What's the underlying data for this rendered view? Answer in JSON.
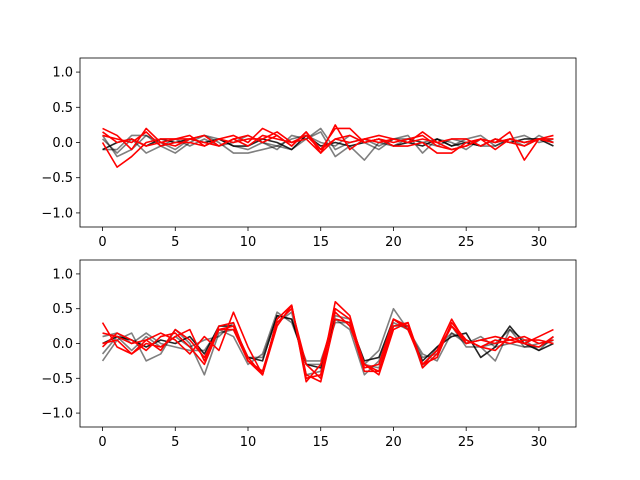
{
  "chart_data": [
    {
      "type": "line",
      "title": "",
      "xlabel": "",
      "ylabel": "",
      "xlim": [
        -1.55,
        32.55
      ],
      "ylim": [
        -1.2,
        1.2
      ],
      "xticks": [
        0,
        5,
        10,
        15,
        20,
        25,
        30
      ],
      "yticks": [
        1.0,
        0.5,
        0.0,
        -0.5,
        -1.0
      ],
      "xtick_labels": [
        "0",
        "5",
        "10",
        "15",
        "20",
        "25",
        "30"
      ],
      "ytick_labels": [
        "1.0",
        "0.5",
        "0.0",
        "−0.5",
        "−1.0"
      ],
      "grid": false,
      "series": [
        {
          "color": "#000000",
          "opacity": 0.5,
          "values": [
            0.1,
            -0.2,
            -0.1,
            0.1,
            0.0,
            -0.1,
            0.05,
            0.1,
            0.05,
            -0.05,
            -0.1,
            0.0,
            -0.1,
            0.1,
            0.05,
            0.15,
            -0.2,
            -0.05,
            -0.25,
            0.0,
            -0.05,
            0.05,
            0.0,
            0.05,
            -0.05,
            0.05,
            0.1,
            -0.05,
            0.05,
            0.0,
            0.05,
            0.0
          ]
        },
        {
          "color": "#000000",
          "opacity": 0.5,
          "values": [
            -0.1,
            -0.1,
            0.1,
            0.1,
            -0.05,
            -0.15,
            0.0,
            0.1,
            0.0,
            -0.15,
            -0.15,
            -0.1,
            -0.05,
            -0.1,
            0.05,
            0.2,
            -0.1,
            0.0,
            0.05,
            -0.05,
            0.05,
            0.1,
            -0.15,
            0.05,
            0.0,
            -0.1,
            0.05,
            0.0,
            0.05,
            -0.05,
            0.1,
            0.0
          ]
        },
        {
          "color": "#000000",
          "opacity": 0.5,
          "values": [
            0.05,
            -0.15,
            0.05,
            -0.15,
            -0.05,
            0.05,
            -0.05,
            0.05,
            -0.05,
            0.0,
            0.1,
            0.0,
            -0.05,
            0.05,
            0.1,
            0.0,
            -0.05,
            0.1,
            0.0,
            -0.1,
            0.05,
            0.05,
            0.0,
            -0.05,
            0.05,
            0.0,
            -0.05,
            -0.05,
            0.05,
            0.1,
            0.0,
            0.05
          ]
        },
        {
          "color": "#000000",
          "opacity": 0.85,
          "values": [
            -0.1,
            0.0,
            0.05,
            -0.05,
            0.05,
            0.0,
            0.05,
            0.0,
            0.05,
            -0.05,
            -0.05,
            0.05,
            0.0,
            -0.1,
            0.1,
            -0.05,
            0.0,
            -0.05,
            0.0,
            0.05,
            -0.05,
            0.0,
            -0.05,
            0.05,
            -0.05,
            0.0,
            -0.05,
            0.05,
            0.0,
            0.05,
            0.05,
            -0.05
          ]
        },
        {
          "color": "#ff0000",
          "opacity": 1.0,
          "values": [
            0.2,
            0.1,
            -0.1,
            0.2,
            0.0,
            -0.05,
            0.05,
            0.1,
            -0.05,
            0.05,
            0.1,
            0.0,
            0.1,
            -0.05,
            0.15,
            -0.1,
            0.2,
            0.2,
            0.0,
            0.05,
            0.0,
            0.05,
            0.1,
            -0.05,
            -0.1,
            -0.05,
            0.05,
            0.0,
            0.05,
            0.0,
            0.05,
            0.0
          ]
        },
        {
          "color": "#ff0000",
          "opacity": 1.0,
          "values": [
            0.0,
            -0.35,
            -0.2,
            0.0,
            0.05,
            0.05,
            0.05,
            0.0,
            -0.05,
            0.05,
            -0.05,
            0.1,
            0.05,
            0.0,
            0.1,
            -0.1,
            0.05,
            0.1,
            0.0,
            0.05,
            -0.05,
            -0.05,
            0.0,
            -0.15,
            -0.15,
            0.0,
            0.05,
            -0.1,
            0.05,
            0.0,
            0.05,
            0.1
          ]
        },
        {
          "color": "#ff0000",
          "opacity": 1.0,
          "values": [
            0.15,
            0.0,
            0.05,
            -0.05,
            0.0,
            0.05,
            0.1,
            -0.05,
            0.05,
            0.1,
            0.0,
            0.2,
            0.1,
            -0.05,
            0.15,
            -0.15,
            0.25,
            -0.1,
            0.05,
            0.1,
            0.05,
            0.0,
            0.15,
            0.0,
            -0.1,
            -0.05,
            0.05,
            0.0,
            0.15,
            -0.25,
            0.05,
            0.05
          ]
        },
        {
          "color": "#ff0000",
          "opacity": 1.0,
          "values": [
            0.1,
            0.05,
            0.0,
            0.15,
            -0.05,
            0.0,
            0.0,
            -0.05,
            0.05,
            0.0,
            0.05,
            0.05,
            0.15,
            0.0,
            0.05,
            -0.15,
            0.05,
            0.0,
            0.05,
            0.0,
            0.05,
            0.0,
            0.05,
            0.0,
            0.05,
            0.05,
            -0.05,
            0.05,
            0.0,
            -0.05,
            0.05,
            0.0
          ]
        }
      ]
    },
    {
      "type": "line",
      "title": "",
      "xlabel": "",
      "ylabel": "",
      "xlim": [
        -1.55,
        32.55
      ],
      "ylim": [
        -1.2,
        1.2
      ],
      "xticks": [
        0,
        5,
        10,
        15,
        20,
        25,
        30
      ],
      "yticks": [
        1.0,
        0.5,
        0.0,
        -0.5,
        -1.0
      ],
      "xtick_labels": [
        "0",
        "5",
        "10",
        "15",
        "20",
        "25",
        "30"
      ],
      "ytick_labels": [
        "1.0",
        "0.5",
        "0.0",
        "−0.5",
        "−1.0"
      ],
      "grid": false,
      "series": [
        {
          "color": "#000000",
          "opacity": 0.5,
          "values": [
            -0.25,
            0.05,
            0.15,
            -0.25,
            -0.15,
            0.2,
            0.0,
            -0.45,
            0.15,
            0.2,
            -0.2,
            -0.2,
            0.4,
            0.35,
            -0.3,
            -0.3,
            0.3,
            0.3,
            -0.3,
            -0.1,
            0.5,
            0.2,
            -0.15,
            -0.25,
            0.15,
            0.0,
            0.1,
            -0.05,
            0.0,
            -0.05,
            -0.05,
            0.05
          ]
        },
        {
          "color": "#000000",
          "opacity": 0.5,
          "values": [
            0.1,
            0.15,
            0.0,
            0.15,
            0.0,
            -0.05,
            -0.1,
            -0.1,
            0.2,
            0.1,
            -0.3,
            -0.15,
            0.45,
            0.3,
            -0.25,
            -0.25,
            0.35,
            0.2,
            -0.45,
            -0.25,
            0.3,
            0.2,
            -0.2,
            -0.15,
            0.25,
            -0.05,
            -0.05,
            -0.25,
            0.2,
            0.05,
            -0.1,
            0.1
          ]
        },
        {
          "color": "#000000",
          "opacity": 0.5,
          "values": [
            -0.15,
            0.1,
            -0.1,
            0.1,
            -0.05,
            0.1,
            -0.05,
            0.05,
            0.1,
            0.3,
            -0.25,
            -0.4,
            0.3,
            0.45,
            -0.45,
            -0.4,
            0.4,
            0.35,
            -0.3,
            -0.35,
            0.25,
            0.25,
            -0.35,
            -0.05,
            0.15,
            0.05,
            -0.05,
            0.0,
            0.2,
            -0.05,
            0.0,
            0.05
          ]
        },
        {
          "color": "#000000",
          "opacity": 0.85,
          "values": [
            0.0,
            0.1,
            0.05,
            -0.05,
            0.05,
            0.0,
            0.1,
            -0.15,
            0.25,
            0.25,
            -0.2,
            -0.25,
            0.4,
            0.35,
            -0.3,
            -0.35,
            0.35,
            0.3,
            -0.25,
            -0.2,
            0.35,
            0.2,
            -0.25,
            -0.05,
            0.1,
            0.15,
            -0.2,
            -0.05,
            0.25,
            0.0,
            -0.1,
            0.0
          ]
        },
        {
          "color": "#ff0000",
          "opacity": 1.0,
          "values": [
            0.3,
            -0.05,
            -0.15,
            0.05,
            0.15,
            0.05,
            -0.15,
            0.1,
            -0.1,
            0.45,
            -0.05,
            -0.45,
            0.25,
            0.55,
            -0.5,
            -0.45,
            0.6,
            0.4,
            -0.35,
            -0.3,
            0.35,
            0.25,
            -0.3,
            -0.1,
            0.35,
            0.0,
            0.05,
            0.1,
            0.05,
            0.0,
            0.1,
            0.2
          ]
        },
        {
          "color": "#ff0000",
          "opacity": 1.0,
          "values": [
            -0.05,
            0.15,
            0.05,
            -0.1,
            0.1,
            0.15,
            -0.05,
            -0.3,
            0.2,
            0.25,
            -0.2,
            -0.45,
            0.35,
            0.55,
            -0.45,
            -0.55,
            0.35,
            0.3,
            -0.4,
            -0.4,
            0.25,
            0.3,
            -0.35,
            -0.15,
            0.25,
            0.05,
            -0.05,
            -0.1,
            0.1,
            0.0,
            -0.05,
            0.1
          ]
        },
        {
          "color": "#ff0000",
          "opacity": 1.0,
          "values": [
            0.15,
            0.1,
            0.0,
            0.05,
            -0.1,
            0.2,
            0.05,
            -0.2,
            0.2,
            0.2,
            -0.25,
            -0.4,
            0.3,
            0.5,
            -0.3,
            -0.5,
            0.5,
            0.35,
            -0.3,
            -0.45,
            0.2,
            0.3,
            -0.3,
            -0.1,
            0.25,
            0.0,
            0.05,
            0.0,
            0.05,
            0.1,
            0.0,
            0.05
          ]
        },
        {
          "color": "#ff0000",
          "opacity": 1.0,
          "values": [
            0.0,
            0.05,
            -0.15,
            0.0,
            -0.05,
            0.1,
            0.2,
            -0.25,
            0.25,
            0.3,
            -0.25,
            -0.45,
            0.35,
            0.55,
            -0.55,
            -0.3,
            0.45,
            0.25,
            -0.3,
            -0.4,
            0.35,
            0.2,
            -0.3,
            -0.2,
            0.3,
            0.05,
            -0.05,
            0.05,
            0.0,
            0.05,
            0.05,
            0.0
          ]
        }
      ]
    }
  ]
}
